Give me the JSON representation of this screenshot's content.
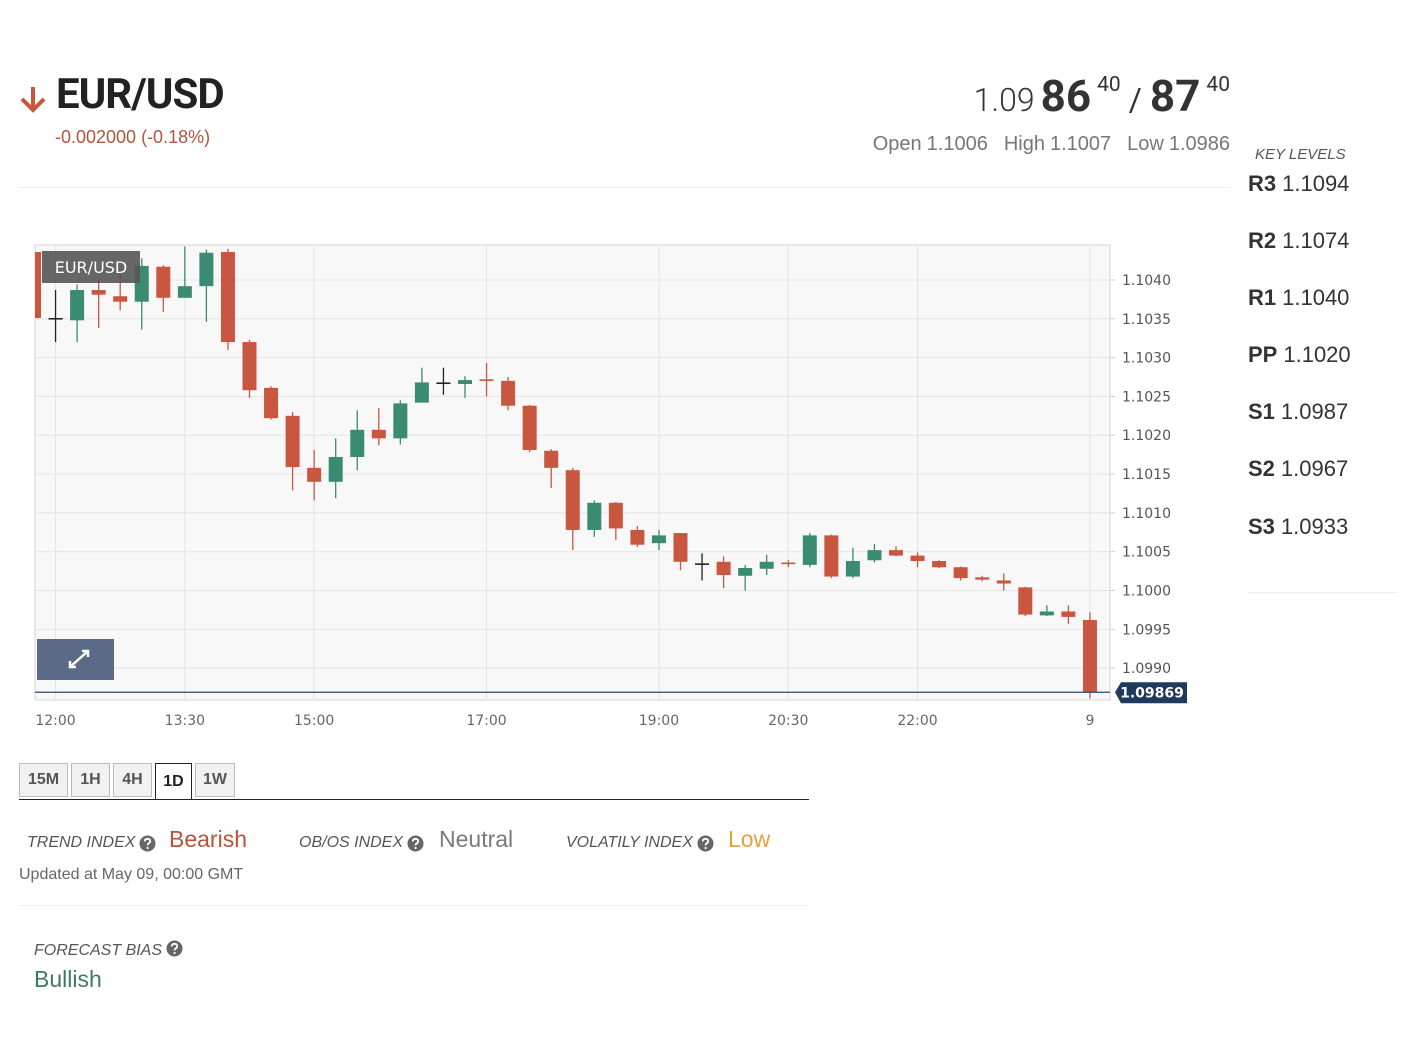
{
  "header": {
    "symbol": "EUR/USD",
    "change": "-0.002000 (-0.18%)"
  },
  "quote": {
    "bid_big": "1.09",
    "bid_pips": "86",
    "bid_frac": "40",
    "separator": "/",
    "ask_pips": "87",
    "ask_frac": "40",
    "stats": [
      {
        "label": "Open",
        "value": "1.1006"
      },
      {
        "label": "High",
        "value": "1.1007"
      },
      {
        "label": "Low",
        "value": "1.0986"
      }
    ]
  },
  "key_levels": {
    "title": "KEY LEVELS",
    "levels": [
      {
        "name": "R3",
        "value": "1.1094"
      },
      {
        "name": "R2",
        "value": "1.1074"
      },
      {
        "name": "R1",
        "value": "1.1040"
      },
      {
        "name": "PP",
        "value": "1.1020"
      },
      {
        "name": "S1",
        "value": "1.0987"
      },
      {
        "name": "S2",
        "value": "1.0967"
      },
      {
        "name": "S3",
        "value": "1.0933"
      }
    ]
  },
  "chart_data": {
    "type": "candlestick",
    "tag": "EUR/USD",
    "categories": [
      null,
      "12:00",
      null,
      null,
      null,
      null,
      null,
      "13:30",
      null,
      null,
      null,
      null,
      null,
      "15:00",
      null,
      null,
      null,
      null,
      null,
      null,
      null,
      "17:00",
      null,
      null,
      null,
      null,
      null,
      null,
      null,
      "19:00",
      null,
      null,
      null,
      null,
      null,
      "20:30",
      null,
      null,
      null,
      null,
      null,
      "22:00",
      null,
      null,
      null,
      null,
      null,
      null,
      null,
      "9"
    ],
    "open": [
      1.10436,
      1.10351,
      1.10348,
      1.10387,
      1.10379,
      1.10372,
      1.10417,
      1.10377,
      1.10392,
      1.10436,
      1.1032,
      1.10261,
      1.10225,
      1.10158,
      1.1014,
      1.10172,
      1.10207,
      1.10196,
      1.10242,
      1.10268,
      1.10266,
      1.10272,
      1.1027,
      1.10238,
      1.1018,
      1.10155,
      1.10078,
      1.10113,
      1.10078,
      1.10061,
      1.10074,
      1.10035,
      1.10037,
      1.10019,
      1.10028,
      1.10036,
      1.10033,
      1.10071,
      1.10018,
      1.10039,
      1.10052,
      1.10045,
      1.10038,
      1.1003,
      1.10017,
      1.10013,
      1.10004,
      1.09968,
      1.09973,
      1.09962
    ],
    "high": [
      1.10436,
      1.10387,
      1.10394,
      1.104,
      1.10413,
      1.10428,
      1.10419,
      1.10443,
      1.10439,
      1.1044,
      1.10323,
      1.10263,
      1.1023,
      1.10181,
      1.10196,
      1.10232,
      1.10235,
      1.10245,
      1.10287,
      1.10287,
      1.10276,
      1.10293,
      1.10275,
      1.10239,
      1.10182,
      1.10158,
      1.10116,
      1.10114,
      1.10083,
      1.10078,
      1.10074,
      1.10048,
      1.10044,
      1.10033,
      1.10046,
      1.10039,
      1.10074,
      1.10072,
      1.10055,
      1.1006,
      1.10057,
      1.10049,
      1.10039,
      1.10031,
      1.10019,
      1.10022,
      1.10005,
      1.09981,
      1.09981,
      1.09972
    ],
    "low": [
      1.10303,
      1.1032,
      1.1032,
      1.10338,
      1.10361,
      1.10336,
      1.10359,
      1.10377,
      1.10346,
      1.1031,
      1.10248,
      1.1022,
      1.10129,
      1.10116,
      1.10119,
      1.10155,
      1.10187,
      1.10188,
      1.10242,
      1.10252,
      1.10248,
      1.1025,
      1.10232,
      1.10178,
      1.10132,
      1.10052,
      1.10069,
      1.10065,
      1.10056,
      1.10052,
      1.10026,
      1.10013,
      1.10003,
      1.1,
      1.1002,
      1.1003,
      1.1003,
      1.10016,
      1.10016,
      1.10036,
      1.10044,
      1.1003,
      1.10029,
      1.10013,
      1.10012,
      1.1,
      1.09967,
      1.09967,
      1.09957,
      1.09861
    ],
    "close": [
      1.10351,
      1.10351,
      1.10387,
      1.10381,
      1.10372,
      1.10418,
      1.10377,
      1.10392,
      1.10435,
      1.1032,
      1.10258,
      1.10222,
      1.10159,
      1.1014,
      1.10172,
      1.10207,
      1.10196,
      1.10241,
      1.10268,
      1.10268,
      1.10271,
      1.1027,
      1.10238,
      1.10181,
      1.10158,
      1.10078,
      1.10113,
      1.1008,
      1.10059,
      1.10071,
      1.10037,
      1.10035,
      1.1002,
      1.10029,
      1.10037,
      1.10035,
      1.10071,
      1.10018,
      1.10038,
      1.10052,
      1.10045,
      1.10038,
      1.1003,
      1.10016,
      1.10014,
      1.10009,
      1.09969,
      1.09973,
      1.09966,
      1.09869
    ],
    "up_color": "#3b8a72",
    "down_color": "#c9563f",
    "doji_color": "#222222",
    "last_price": 1.09869,
    "ylim": [
      1.09859,
      1.10445
    ],
    "yticks": [
      {
        "value": 1.099,
        "label": "1.0990"
      },
      1.0995,
      {
        "value": 1.1,
        "label": "1.1000"
      },
      1.1005,
      {
        "value": 1.101,
        "label": "1.1010"
      },
      1.1015,
      {
        "value": 1.102,
        "label": "1.1020"
      },
      1.1025,
      {
        "value": 1.103,
        "label": "1.1030"
      },
      1.1035,
      {
        "value": 1.104,
        "label": "1.1040"
      }
    ],
    "grid": true
  },
  "timeframes": {
    "tabs": [
      "15M",
      "1H",
      "4H",
      "1D",
      "1W"
    ],
    "active": 3
  },
  "indices": [
    {
      "label": "TREND INDEX",
      "value": "Bearish",
      "color": "#b5533c"
    },
    {
      "label": "OB/OS INDEX",
      "value": "Neutral",
      "color": "#7a7a7a"
    },
    {
      "label": "VOLATILY INDEX",
      "value": "Low",
      "color": "#e3a23c"
    }
  ],
  "updated": "Updated at May 09, 00:00 GMT",
  "forecast": {
    "label": "FORECAST BIAS",
    "value": "Bullish",
    "color": "#3d7a64"
  }
}
